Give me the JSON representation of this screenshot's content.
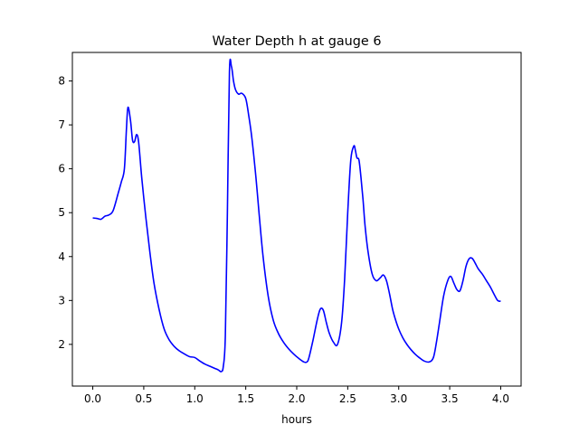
{
  "chart_data": {
    "type": "line",
    "title": "Water Depth h at gauge 6",
    "xlabel": "hours",
    "ylabel": "",
    "xlim": [
      -0.2,
      4.2
    ],
    "ylim": [
      1.05,
      8.65
    ],
    "xticks": [
      0.0,
      0.5,
      1.0,
      1.5,
      2.0,
      2.5,
      3.0,
      3.5,
      4.0
    ],
    "xtick_labels": [
      "0.0",
      "0.5",
      "1.0",
      "1.5",
      "2.0",
      "2.5",
      "3.0",
      "3.5",
      "4.0"
    ],
    "yticks": [
      2,
      3,
      4,
      5,
      6,
      7,
      8
    ],
    "ytick_labels": [
      "2",
      "3",
      "4",
      "5",
      "6",
      "7",
      "8"
    ],
    "grid": false,
    "series": [
      {
        "color": "#0000ff",
        "x": [
          0.0,
          0.04,
          0.08,
          0.12,
          0.16,
          0.2,
          0.25,
          0.28,
          0.31,
          0.33,
          0.345,
          0.37,
          0.39,
          0.41,
          0.43,
          0.45,
          0.48,
          0.52,
          0.56,
          0.6,
          0.65,
          0.7,
          0.75,
          0.8,
          0.85,
          0.9,
          0.95,
          1.0,
          1.05,
          1.1,
          1.15,
          1.2,
          1.23,
          1.26,
          1.28,
          1.3,
          1.32,
          1.34,
          1.36,
          1.38,
          1.4,
          1.43,
          1.46,
          1.5,
          1.53,
          1.56,
          1.6,
          1.63,
          1.67,
          1.72,
          1.77,
          1.82,
          1.87,
          1.92,
          1.97,
          2.02,
          2.07,
          2.1,
          2.12,
          2.16,
          2.2,
          2.23,
          2.26,
          2.29,
          2.32,
          2.36,
          2.4,
          2.44,
          2.47,
          2.5,
          2.53,
          2.56,
          2.575,
          2.59,
          2.61,
          2.63,
          2.65,
          2.67,
          2.7,
          2.74,
          2.78,
          2.82,
          2.85,
          2.88,
          2.91,
          2.94,
          2.97,
          3.0,
          3.04,
          3.08,
          3.12,
          3.16,
          3.2,
          3.25,
          3.3,
          3.34,
          3.37,
          3.4,
          3.44,
          3.48,
          3.51,
          3.54,
          3.57,
          3.6,
          3.63,
          3.66,
          3.69,
          3.72,
          3.75,
          3.78,
          3.82,
          3.86,
          3.9,
          3.94,
          3.97,
          4.0
        ],
        "values": [
          4.88,
          4.87,
          4.85,
          4.92,
          4.95,
          5.05,
          5.45,
          5.7,
          6.0,
          6.9,
          7.4,
          7.1,
          6.65,
          6.62,
          6.78,
          6.6,
          5.8,
          4.9,
          4.1,
          3.4,
          2.8,
          2.35,
          2.1,
          1.95,
          1.85,
          1.78,
          1.72,
          1.7,
          1.62,
          1.55,
          1.5,
          1.45,
          1.42,
          1.38,
          1.5,
          2.2,
          5.0,
          8.2,
          8.33,
          8.0,
          7.8,
          7.7,
          7.72,
          7.6,
          7.2,
          6.7,
          5.8,
          5.0,
          4.0,
          3.1,
          2.55,
          2.25,
          2.05,
          1.9,
          1.78,
          1.68,
          1.6,
          1.6,
          1.7,
          2.1,
          2.55,
          2.8,
          2.78,
          2.5,
          2.25,
          2.05,
          2.0,
          2.5,
          3.5,
          5.0,
          6.2,
          6.52,
          6.42,
          6.25,
          6.2,
          5.8,
          5.3,
          4.7,
          4.1,
          3.6,
          3.45,
          3.52,
          3.58,
          3.45,
          3.15,
          2.8,
          2.55,
          2.35,
          2.15,
          2.0,
          1.88,
          1.78,
          1.7,
          1.62,
          1.6,
          1.7,
          2.05,
          2.5,
          3.1,
          3.45,
          3.55,
          3.4,
          3.25,
          3.22,
          3.45,
          3.78,
          3.95,
          3.96,
          3.85,
          3.72,
          3.6,
          3.45,
          3.3,
          3.12,
          3.0,
          2.98
        ]
      }
    ]
  }
}
